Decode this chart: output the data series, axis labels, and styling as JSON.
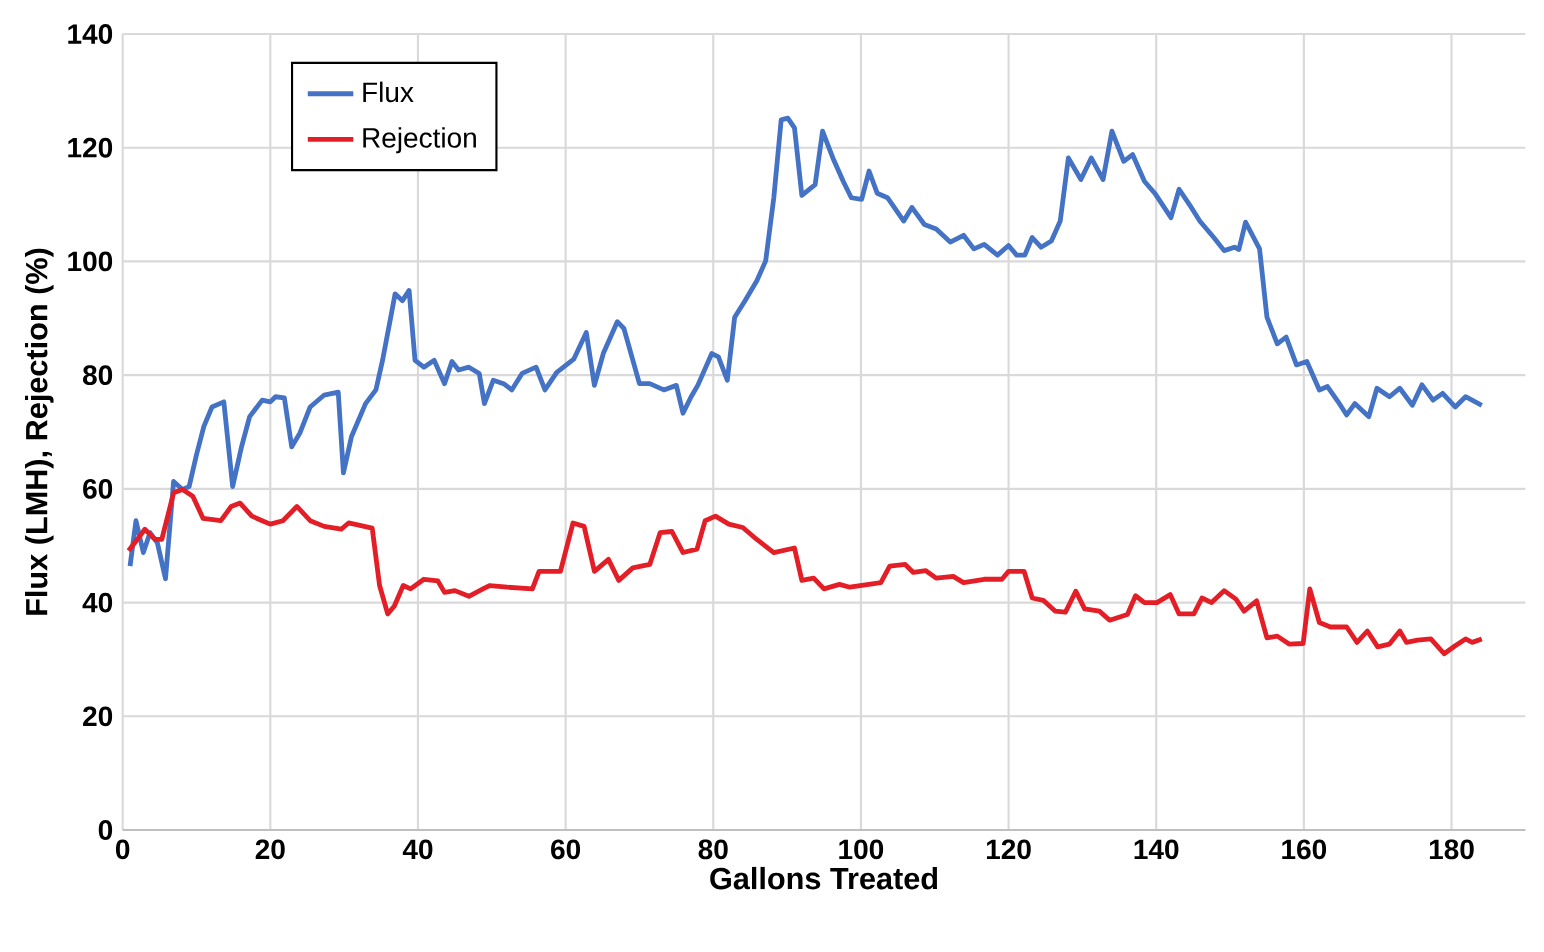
{
  "chart_data": {
    "type": "line",
    "xlabel": "Gallons Treated",
    "ylabel": "Flux (LMH), Rejection (%)",
    "xlim": [
      0,
      190
    ],
    "ylim": [
      0,
      140
    ],
    "xticks": [
      0,
      20,
      40,
      60,
      80,
      100,
      120,
      140,
      160,
      180
    ],
    "yticks": [
      0,
      20,
      40,
      60,
      80,
      100,
      120,
      140
    ],
    "grid": true,
    "legend": "top left",
    "marker": "none",
    "series": [
      {
        "name": "Flux",
        "color": "#4472c4",
        "x": [
          1,
          1.8,
          2.8,
          3.7,
          4.7,
          5.8,
          6.9,
          8.1,
          9,
          10,
          11,
          12.1,
          13.7,
          14.9,
          16.1,
          17.2,
          18.9,
          20,
          20.7,
          21.9,
          22.9,
          24,
          25.4,
          27.3,
          29.2,
          29.9,
          31,
          32.9,
          34.3,
          35.2,
          36.4,
          36.9,
          37.9,
          38.8,
          39.6,
          40.8,
          42.2,
          43.6,
          44.6,
          45.5,
          46.9,
          48.3,
          49,
          50.2,
          51.6,
          52.7,
          54.1,
          56,
          57.2,
          58.8,
          61.1,
          62.8,
          63.9,
          65.1,
          67,
          67.9,
          70,
          71.4,
          73.3,
          75,
          75.9,
          77,
          77.9,
          79.8,
          80.7,
          81.9,
          82.9,
          84.3,
          85.9,
          87.1,
          88.2,
          89.2,
          90.1,
          91,
          92,
          93.8,
          94.8,
          96.2,
          97.6,
          98.7,
          100.1,
          101.1,
          102.2,
          103.6,
          105.8,
          106.9,
          108.6,
          110.2,
          112.1,
          113.9,
          115.3,
          116.7,
          118.5,
          120,
          121.1,
          122.2,
          123.2,
          124.4,
          125.8,
          127,
          128.1,
          129.8,
          131.2,
          132.8,
          134,
          135.6,
          136.8,
          138.4,
          139.8,
          142,
          143.1,
          144.5,
          145.9,
          147.8,
          149.2,
          150.6,
          151.2,
          152.1,
          154,
          155,
          156.4,
          157.6,
          159,
          160.4,
          162.1,
          163.2,
          164.6,
          165.8,
          166.9,
          168.8,
          169.9,
          171.6,
          173,
          174.7,
          176,
          177.5,
          178.8,
          180.5,
          181.9,
          184.1
        ],
        "values": [
          46.4,
          54.4,
          48.8,
          52.3,
          50.5,
          44.2,
          61.3,
          59.9,
          60.4,
          66,
          71,
          74.4,
          75.3,
          60.4,
          67.4,
          72.7,
          75.6,
          75.3,
          76.2,
          76,
          67.4,
          69.8,
          74.4,
          76.5,
          77,
          62.8,
          69.2,
          75,
          77.4,
          82.6,
          90.8,
          94.3,
          93.1,
          94.9,
          82.6,
          81.4,
          82.6,
          78.5,
          82.4,
          80.9,
          81.4,
          80.3,
          75,
          79.1,
          78.5,
          77.4,
          80.3,
          81.4,
          77.4,
          80.5,
          82.8,
          87.5,
          78.2,
          83.8,
          89.4,
          88.2,
          78.5,
          78.5,
          77.4,
          78.2,
          73.3,
          76.2,
          78.2,
          83.8,
          83.2,
          79.1,
          90.2,
          93.1,
          96.6,
          100.1,
          111.2,
          124.9,
          125.2,
          123.5,
          111.6,
          113.5,
          122.9,
          118.2,
          114.1,
          111.2,
          110.9,
          115.9,
          112,
          111.2,
          107.1,
          109.5,
          106.5,
          105.7,
          103.4,
          104.6,
          102.2,
          103,
          101.1,
          102.8,
          101.1,
          101.1,
          104.2,
          102.5,
          103.6,
          107.1,
          118.2,
          114.4,
          118.2,
          114.4,
          122.9,
          117.6,
          118.8,
          114.1,
          112,
          107.7,
          112.7,
          110,
          107.1,
          104.2,
          101.9,
          102.5,
          102.1,
          106.9,
          102.2,
          90.2,
          85.5,
          86.7,
          81.8,
          82.4,
          77.4,
          78,
          75.4,
          73,
          75,
          72.7,
          77.7,
          76.2,
          77.7,
          74.7,
          78.3,
          75.6,
          76.8,
          74.4,
          76.2,
          74.7
        ]
      },
      {
        "name": "Rejection",
        "color": "#e41e26",
        "x": [
          0.8,
          2.1,
          3,
          4.4,
          5.3,
          6.9,
          8.1,
          9.5,
          10.9,
          13.3,
          14.7,
          15.9,
          17.5,
          18.9,
          20,
          21.7,
          23.6,
          25.4,
          27.3,
          29.6,
          30.6,
          33.8,
          34.8,
          35.9,
          36.8,
          38,
          39,
          40.8,
          42.7,
          43.6,
          45,
          46.9,
          48.8,
          49.7,
          52.1,
          55.5,
          56.4,
          59.3,
          61,
          62.5,
          63.9,
          65.8,
          67.2,
          69.1,
          71.4,
          72.8,
          74.4,
          75.9,
          77.8,
          78.9,
          80.3,
          82.1,
          84,
          85.9,
          88.2,
          91,
          92,
          93.6,
          95,
          97.1,
          98.5,
          102.7,
          103.9,
          106,
          107.1,
          108.8,
          110.2,
          112.5,
          113.9,
          116.7,
          119.1,
          120,
          122.1,
          123.2,
          124.7,
          126.3,
          127.7,
          129.1,
          130.3,
          132.3,
          133.7,
          136.1,
          137.2,
          138.4,
          140.1,
          141.9,
          143.1,
          145.1,
          146.2,
          147.5,
          149.2,
          150.8,
          151.9,
          153.6,
          155,
          156.4,
          158,
          159.9,
          160.8,
          162.1,
          163.6,
          165.8,
          167.2,
          168.6,
          170,
          171.6,
          173,
          173.9,
          175.4,
          177.2,
          179,
          180.5,
          181.9,
          182.8,
          184.1
        ],
        "values": [
          49.1,
          51.3,
          52.9,
          51.1,
          51.1,
          59.3,
          59.9,
          58.7,
          54.8,
          54.4,
          56.9,
          57.5,
          55.2,
          54.4,
          53.8,
          54.4,
          56.9,
          54.4,
          53.4,
          52.9,
          54,
          53.1,
          43,
          38,
          39.4,
          43,
          42.4,
          44.1,
          43.8,
          41.8,
          42.1,
          41.1,
          42.4,
          43,
          42.7,
          42.4,
          45.5,
          45.5,
          54,
          53.4,
          45.5,
          47.6,
          43.9,
          46.1,
          46.7,
          52.3,
          52.5,
          48.8,
          49.4,
          54.4,
          55.2,
          53.8,
          53.2,
          51.1,
          48.8,
          49.6,
          43.9,
          44.3,
          42.4,
          43.2,
          42.7,
          43.5,
          46.4,
          46.7,
          45.3,
          45.6,
          44.3,
          44.6,
          43.5,
          44.1,
          44.1,
          45.5,
          45.5,
          40.8,
          40.4,
          38.5,
          38.3,
          42,
          38.9,
          38.5,
          36.9,
          37.9,
          41.2,
          40,
          40,
          41.4,
          38,
          38,
          40.8,
          40,
          42.1,
          40.6,
          38.5,
          40.3,
          33.8,
          34.1,
          32.7,
          32.8,
          42.4,
          36.5,
          35.7,
          35.7,
          33,
          35,
          32.2,
          32.7,
          35,
          33,
          33.4,
          33.6,
          31,
          32.4,
          33.6,
          33,
          33.6
        ]
      }
    ]
  }
}
